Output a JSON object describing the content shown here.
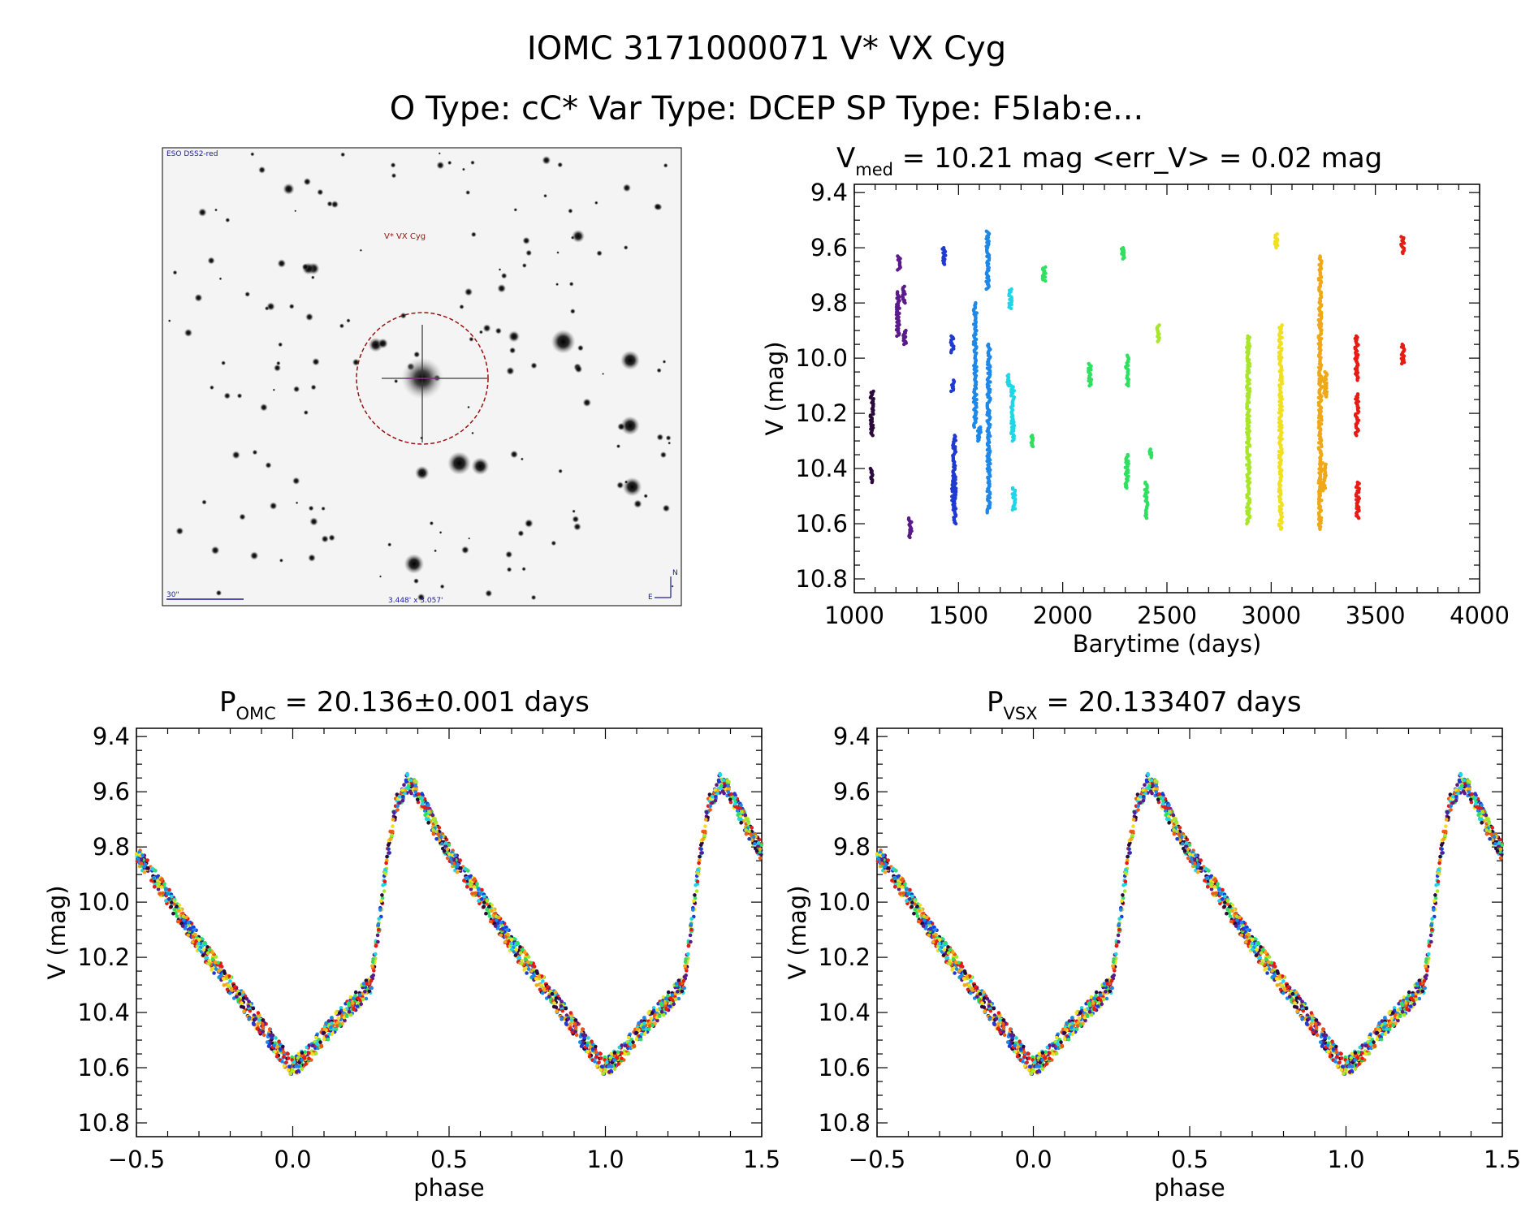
{
  "header": {
    "title_line1": "IOMC 3171000071   V* VX Cyg",
    "title_line2": "O Type: cC*  Var Type: DCEP  SP Type: F5Iab:e..."
  },
  "finder_image": {
    "top_left_label": "ESO DSS2-red",
    "target_label": "V* VX Cyg",
    "scale_label": "30\"",
    "size_label": "3.448' x 3.057'",
    "compass_north": "N",
    "compass_east": "E"
  },
  "colors": {
    "palette": [
      "#2a0a3a",
      "#5a1a8a",
      "#1f3ad0",
      "#1e88e8",
      "#1fd6e6",
      "#2fe060",
      "#a8e62a",
      "#f0e020",
      "#f0a818",
      "#f05818",
      "#e81a14"
    ],
    "finder_circle": "#9a1010"
  },
  "chart_data": [
    {
      "id": "lightcurve",
      "type": "scatter",
      "title_main": "V",
      "title_sub": "med",
      "title_rest": " = 10.21 mag <err_V> = 0.02 mag",
      "xlabel": "Barytime (days)",
      "ylabel": "V (mag)",
      "xlim": [
        1000,
        4000
      ],
      "ylim": [
        10.85,
        9.37
      ],
      "y_inverted": true,
      "xticks": [
        1000,
        1500,
        2000,
        2500,
        3000,
        3500,
        4000
      ],
      "yticks": [
        9.4,
        9.6,
        9.8,
        10.0,
        10.2,
        10.4,
        10.6,
        10.8
      ],
      "segments": [
        {
          "x": 1085,
          "y": [
            10.12,
            10.28
          ],
          "c": 0
        },
        {
          "x": 1085,
          "y": [
            10.4,
            10.45
          ],
          "c": 0
        },
        {
          "x": 1210,
          "y": [
            9.76,
            9.92
          ],
          "c": 1
        },
        {
          "x": 1215,
          "y": [
            9.63,
            9.68
          ],
          "c": 1
        },
        {
          "x": 1240,
          "y": [
            9.74,
            9.8
          ],
          "c": 1
        },
        {
          "x": 1242,
          "y": [
            9.9,
            9.95
          ],
          "c": 1
        },
        {
          "x": 1268,
          "y": [
            10.58,
            10.65
          ],
          "c": 1
        },
        {
          "x": 1430,
          "y": [
            9.6,
            9.66
          ],
          "c": 2
        },
        {
          "x": 1470,
          "y": [
            9.92,
            9.98
          ],
          "c": 2
        },
        {
          "x": 1472,
          "y": [
            10.08,
            10.12
          ],
          "c": 2
        },
        {
          "x": 1480,
          "y": [
            10.28,
            10.6
          ],
          "c": 2
        },
        {
          "x": 1475,
          "y": [
            10.45,
            10.52
          ],
          "c": 2
        },
        {
          "x": 1580,
          "y": [
            9.8,
            10.25
          ],
          "c": 3
        },
        {
          "x": 1600,
          "y": [
            10.25,
            10.3
          ],
          "c": 3
        },
        {
          "x": 1640,
          "y": [
            9.54,
            9.75
          ],
          "c": 3
        },
        {
          "x": 1645,
          "y": [
            9.95,
            10.56
          ],
          "c": 3
        },
        {
          "x": 1750,
          "y": [
            9.75,
            9.82
          ],
          "c": 4
        },
        {
          "x": 1760,
          "y": [
            10.1,
            10.3
          ],
          "c": 4
        },
        {
          "x": 1765,
          "y": [
            10.47,
            10.55
          ],
          "c": 4
        },
        {
          "x": 1740,
          "y": [
            10.06,
            10.1
          ],
          "c": 4
        },
        {
          "x": 1855,
          "y": [
            10.28,
            10.32
          ],
          "c": 5
        },
        {
          "x": 1910,
          "y": [
            9.67,
            9.72
          ],
          "c": 5
        },
        {
          "x": 2130,
          "y": [
            10.02,
            10.1
          ],
          "c": 5
        },
        {
          "x": 2290,
          "y": [
            9.6,
            9.64
          ],
          "c": 5
        },
        {
          "x": 2310,
          "y": [
            9.99,
            10.1
          ],
          "c": 5
        },
        {
          "x": 2308,
          "y": [
            10.35,
            10.47
          ],
          "c": 5
        },
        {
          "x": 2400,
          "y": [
            10.45,
            10.58
          ],
          "c": 5
        },
        {
          "x": 2420,
          "y": [
            10.33,
            10.36
          ],
          "c": 5
        },
        {
          "x": 2460,
          "y": [
            9.88,
            9.94
          ],
          "c": 6
        },
        {
          "x": 2890,
          "y": [
            9.92,
            10.6
          ],
          "c": 6
        },
        {
          "x": 3025,
          "y": [
            9.55,
            9.6
          ],
          "c": 7
        },
        {
          "x": 3045,
          "y": [
            9.88,
            10.62
          ],
          "c": 7
        },
        {
          "x": 3235,
          "y": [
            9.63,
            10.62
          ],
          "c": 8
        },
        {
          "x": 3260,
          "y": [
            10.05,
            10.14
          ],
          "c": 8
        },
        {
          "x": 3255,
          "y": [
            10.38,
            10.48
          ],
          "c": 8
        },
        {
          "x": 3410,
          "y": [
            9.92,
            10.08
          ],
          "c": 10
        },
        {
          "x": 3412,
          "y": [
            10.13,
            10.28
          ],
          "c": 10
        },
        {
          "x": 3415,
          "y": [
            10.45,
            10.58
          ],
          "c": 10
        },
        {
          "x": 3630,
          "y": [
            9.56,
            9.62
          ],
          "c": 10
        },
        {
          "x": 3632,
          "y": [
            9.95,
            10.02
          ],
          "c": 10
        }
      ]
    },
    {
      "id": "phase_omc",
      "type": "scatter",
      "title_main": "P",
      "title_sub": "OMC",
      "title_rest": " = 20.136±0.001 days",
      "xlabel": "phase",
      "ylabel": "V (mag)",
      "xlim": [
        -0.5,
        1.5
      ],
      "ylim": [
        10.85,
        9.37
      ],
      "y_inverted": true,
      "xticks": [
        -0.5,
        0.0,
        0.5,
        1.0,
        1.5
      ],
      "yticks": [
        9.4,
        9.6,
        9.8,
        10.0,
        10.2,
        10.4,
        10.6,
        10.8
      ],
      "curve_phase": [
        0.0,
        0.05,
        0.1,
        0.15,
        0.2,
        0.25,
        0.28,
        0.3,
        0.33,
        0.37,
        0.4,
        0.45,
        0.5,
        0.6,
        0.7,
        0.8,
        0.9,
        0.95,
        1.0
      ],
      "curve_mag": [
        10.6,
        10.55,
        10.48,
        10.42,
        10.36,
        10.3,
        10.05,
        9.85,
        9.65,
        9.56,
        9.6,
        9.72,
        9.82,
        9.98,
        10.15,
        10.3,
        10.45,
        10.53,
        10.6
      ]
    },
    {
      "id": "phase_vsx",
      "type": "scatter",
      "title_main": "P",
      "title_sub": "VSX",
      "title_rest": " = 20.133407 days",
      "xlabel": "phase",
      "ylabel": "V (mag)",
      "xlim": [
        -0.5,
        1.5
      ],
      "ylim": [
        10.85,
        9.37
      ],
      "y_inverted": true,
      "xticks": [
        -0.5,
        0.0,
        0.5,
        1.0,
        1.5
      ],
      "yticks": [
        9.4,
        9.6,
        9.8,
        10.0,
        10.2,
        10.4,
        10.6,
        10.8
      ],
      "curve_phase": [
        0.0,
        0.05,
        0.1,
        0.15,
        0.2,
        0.25,
        0.28,
        0.3,
        0.33,
        0.37,
        0.4,
        0.45,
        0.5,
        0.6,
        0.7,
        0.8,
        0.9,
        0.95,
        1.0
      ],
      "curve_mag": [
        10.6,
        10.55,
        10.48,
        10.42,
        10.36,
        10.3,
        10.05,
        9.85,
        9.65,
        9.56,
        9.6,
        9.72,
        9.82,
        9.98,
        10.15,
        10.3,
        10.45,
        10.53,
        10.6
      ]
    }
  ]
}
